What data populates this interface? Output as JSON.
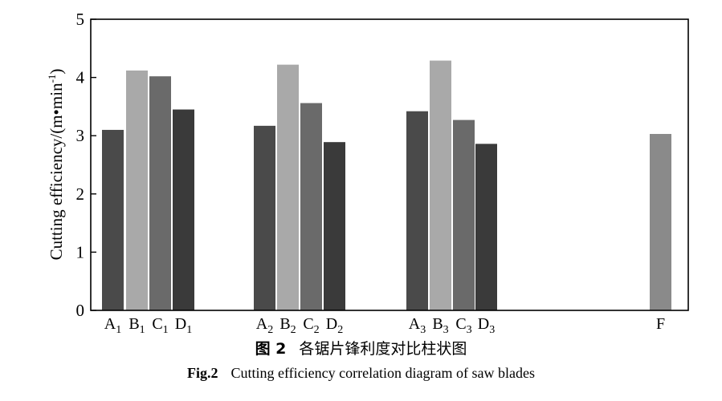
{
  "chart_data": {
    "type": "bar",
    "ylabel": "Cutting efficiency/(m•min",
    "ylabel_sup": "-1",
    "ylabel_close": ")",
    "ylim": [
      0,
      5
    ],
    "yticks": [
      0,
      1,
      2,
      3,
      4,
      5
    ],
    "grid": false,
    "bars": [
      {
        "base": "A",
        "sub": "1",
        "value": 3.1,
        "color": "#4a4a4a"
      },
      {
        "base": "B",
        "sub": "1",
        "value": 4.12,
        "color": "#a9a9a9"
      },
      {
        "base": "C",
        "sub": "1",
        "value": 4.02,
        "color": "#6a6a6a"
      },
      {
        "base": "D",
        "sub": "1",
        "value": 3.45,
        "color": "#3a3a3a"
      },
      {
        "base": "A",
        "sub": "2",
        "value": 3.17,
        "color": "#4a4a4a"
      },
      {
        "base": "B",
        "sub": "2",
        "value": 4.22,
        "color": "#a9a9a9"
      },
      {
        "base": "C",
        "sub": "2",
        "value": 3.56,
        "color": "#6a6a6a"
      },
      {
        "base": "D",
        "sub": "2",
        "value": 2.89,
        "color": "#3a3a3a"
      },
      {
        "base": "A",
        "sub": "3",
        "value": 3.42,
        "color": "#4a4a4a"
      },
      {
        "base": "B",
        "sub": "3",
        "value": 4.29,
        "color": "#a9a9a9"
      },
      {
        "base": "C",
        "sub": "3",
        "value": 3.27,
        "color": "#6a6a6a"
      },
      {
        "base": "D",
        "sub": "3",
        "value": 2.86,
        "color": "#3a3a3a"
      },
      {
        "base": "F",
        "sub": "",
        "value": 3.03,
        "color": "#8a8a8a"
      }
    ]
  },
  "caption_cn": {
    "num": "图 2",
    "text": "各锯片锋利度对比柱状图"
  },
  "caption_en": {
    "num": "Fig.2",
    "text": "Cutting efficiency correlation diagram of saw blades"
  }
}
